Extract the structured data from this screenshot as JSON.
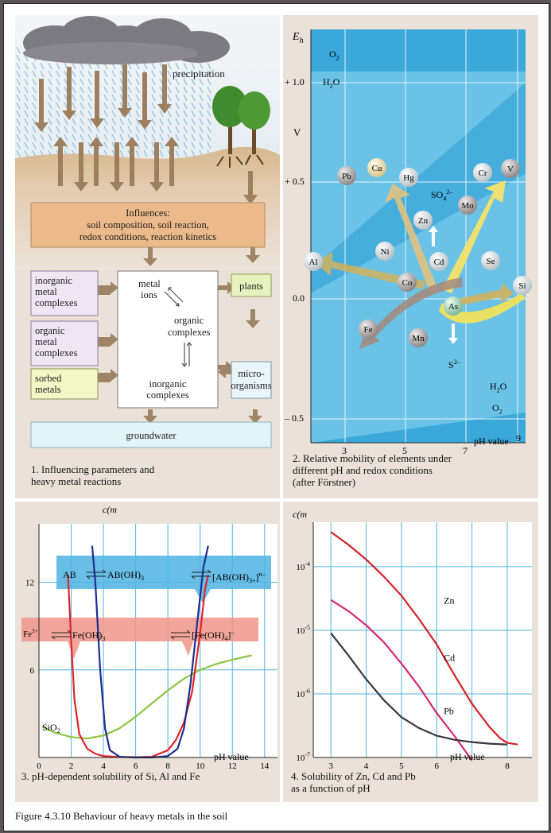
{
  "figure_caption": "Figure 4.3.10 Behaviour of heavy metals in the soil",
  "panel1": {
    "caption_line1": "1. Influencing parameters and",
    "caption_line2": "heavy metal reactions",
    "precipitation": "precipitation",
    "influences_title": "Influences:",
    "influences_line1": "soil composition, soil reaction,",
    "influences_line2": "redox conditions, reaction kinetics",
    "inorganic_complexes_box": [
      "inorganic",
      "metal",
      "complexes"
    ],
    "organic_complexes_box": [
      "organic",
      "metal",
      "complexes"
    ],
    "sorbed_box": [
      "sorbed",
      "metals"
    ],
    "center_metal_ions": [
      "metal",
      "ions"
    ],
    "center_organic": [
      "organic",
      "complexes"
    ],
    "center_inorganic": [
      "inorganic",
      "complexes"
    ],
    "plants": "plants",
    "microorganisms": [
      "micro-",
      "organisms"
    ],
    "groundwater": "groundwater",
    "colors": {
      "influences": "#ebb98a",
      "left_box": "#efe6f4",
      "sorbed": "#f3f6c5",
      "plants": "#e8f2c1",
      "micro": "#e8f6f9",
      "groundwater": "#e3f4f8",
      "arrow": "#a08466"
    }
  },
  "panel2": {
    "caption_line1": "2. Relative mobility of elements under",
    "caption_line2": "different pH and redox conditions",
    "caption_line3": "(after Förstner)",
    "eh_label": "E",
    "eh_sub": "h",
    "v_label": "V",
    "y_ticks": [
      "+ 1.0",
      "+ 0.5",
      "0.0",
      "– 0.5"
    ],
    "x_ticks": [
      "3",
      "5",
      "7",
      "9"
    ],
    "x_axis_label": "pH value",
    "o2_top": "O",
    "o2_top_sub": "2",
    "h2o_top": "H",
    "h2o_top_sub": "2",
    "h2o_top_tail": "O",
    "h2o_bottom": "H",
    "h2o_bottom_sub": "2",
    "h2o_bottom_tail": "O",
    "o2_bottom": "O",
    "o2_bottom_sub": "2",
    "so4": "SO",
    "so4_sub": "4",
    "so4_sup": "2–",
    "s2": "S",
    "s2_sup": "2–",
    "elements": [
      "Pb",
      "Cu",
      "Hg",
      "Cr",
      "V",
      "Mo",
      "Zn",
      "Al",
      "Ni",
      "Cd",
      "Se",
      "Co",
      "Si",
      "As",
      "Fe",
      "Mn"
    ],
    "colors": {
      "background": "#3aa8d9",
      "band": "#7dccec",
      "light_sphere": "#f6ecc0",
      "gray_sphere": "#b9b3b4"
    }
  },
  "panel3": {
    "caption": "3. pH-dependent solubility of Si, Al and Fe",
    "y_label": "c(m",
    "x_axis_label": "pH value",
    "ab_left": "AB",
    "ab_mid": "AB(OH)",
    "ab_mid_sub": "3",
    "ab_right": "[AB(OH)",
    "ab_right_sub": "3+",
    "ab_right_tail": "]",
    "ab_right_sup": "n–",
    "fe_left": "Fe",
    "fe_left_sup": "3+",
    "fe_mid": "Fe(OH)",
    "fe_mid_sub": "3",
    "fe_right": "[Fe(OH)",
    "fe_right_sub": "4",
    "fe_right_tail": "]",
    "fe_right_sup": "–",
    "sio2": "SiO",
    "sio2_sub": "2"
  },
  "panel4": {
    "caption_line1": "4. Solubility of Zn, Cd and Pb",
    "caption_line2": "as a function of pH",
    "y_label": "c(m",
    "x_axis_label": "pH value"
  },
  "chart_data": [
    {
      "type": "line",
      "panel": "3",
      "xlabel": "pH value",
      "ylabel": "c(m",
      "xlim": [
        0,
        14.8
      ],
      "ylim": [
        0,
        16
      ],
      "x_ticks": [
        0,
        2,
        4,
        6,
        8,
        10,
        12,
        14
      ],
      "y_ticks": [
        6,
        12
      ],
      "grid": true,
      "series": [
        {
          "name": "SiO2",
          "color": "#8cc63f",
          "x": [
            0.2,
            1,
            2,
            3,
            4,
            5,
            6,
            7,
            8,
            9,
            10,
            11,
            12,
            13.2
          ],
          "y": [
            2.1,
            1.7,
            1.4,
            1.3,
            1.5,
            2.0,
            2.8,
            3.7,
            4.6,
            5.4,
            6.0,
            6.4,
            6.7,
            7.0
          ]
        },
        {
          "color": "#e0242c",
          "x": [
            1.8,
            2.0,
            2.2,
            2.5,
            3,
            3.5,
            4,
            5,
            6,
            7,
            8,
            8.5,
            9,
            9.5,
            10,
            10.3,
            10.5
          ],
          "y": [
            12.5,
            8.0,
            4.0,
            1.6,
            0.6,
            0.25,
            0.1,
            0.03,
            0.02,
            0.05,
            0.5,
            1.2,
            2.4,
            4.5,
            8.5,
            11.5,
            12.5
          ]
        },
        {
          "color": "#1f2d8f",
          "x": [
            3.3,
            3.5,
            3.8,
            4.1,
            4.4,
            5,
            6,
            7,
            8,
            8.6,
            9.0,
            9.4,
            9.8,
            10.2,
            10.5
          ],
          "y": [
            14.5,
            12.0,
            6.0,
            2.0,
            0.5,
            0.05,
            0.0,
            0.0,
            0.1,
            0.6,
            2.0,
            5.0,
            9.0,
            13.0,
            14.5
          ]
        }
      ]
    },
    {
      "type": "line",
      "panel": "4",
      "xlabel": "pH value",
      "ylabel": "c(m",
      "y_scale": "log",
      "xlim": [
        2.5,
        8.7
      ],
      "ylim": [
        1e-07,
        0.0005
      ],
      "x_ticks": [
        3,
        4,
        5,
        6,
        7,
        8
      ],
      "y_tick_labels": [
        "10-4",
        "10-5",
        "10-6",
        "10-7"
      ],
      "grid": true,
      "series": [
        {
          "name": "Zn",
          "color": "#d42027",
          "x": [
            3,
            3.5,
            4,
            4.5,
            5,
            5.5,
            6,
            6.5,
            7,
            7.5,
            7.8,
            8,
            8.3
          ],
          "y": [
            0.00035,
            0.00022,
            0.00013,
            7e-05,
            3.5e-05,
            1.5e-05,
            6e-06,
            2e-06,
            7e-07,
            3e-07,
            2e-07,
            1.7e-07,
            1.6e-07
          ]
        },
        {
          "name": "Cd",
          "color": "#d42a72",
          "x": [
            3,
            3.5,
            4,
            4.5,
            5,
            5.5,
            6,
            6.5,
            7
          ],
          "y": [
            3e-05,
            2e-05,
            1.2e-05,
            6.5e-06,
            3e-06,
            1.3e-06,
            5e-07,
            2.2e-07,
            9e-08
          ]
        },
        {
          "name": "Pb",
          "color": "#3b3640",
          "x": [
            3,
            3.5,
            4,
            4.5,
            5,
            5.5,
            6,
            6.5,
            7,
            7.5,
            8
          ],
          "y": [
            9e-06,
            4e-06,
            1.7e-06,
            8e-07,
            4.3e-07,
            2.9e-07,
            2.2e-07,
            1.9e-07,
            1.75e-07,
            1.65e-07,
            1.6e-07
          ]
        }
      ]
    }
  ]
}
